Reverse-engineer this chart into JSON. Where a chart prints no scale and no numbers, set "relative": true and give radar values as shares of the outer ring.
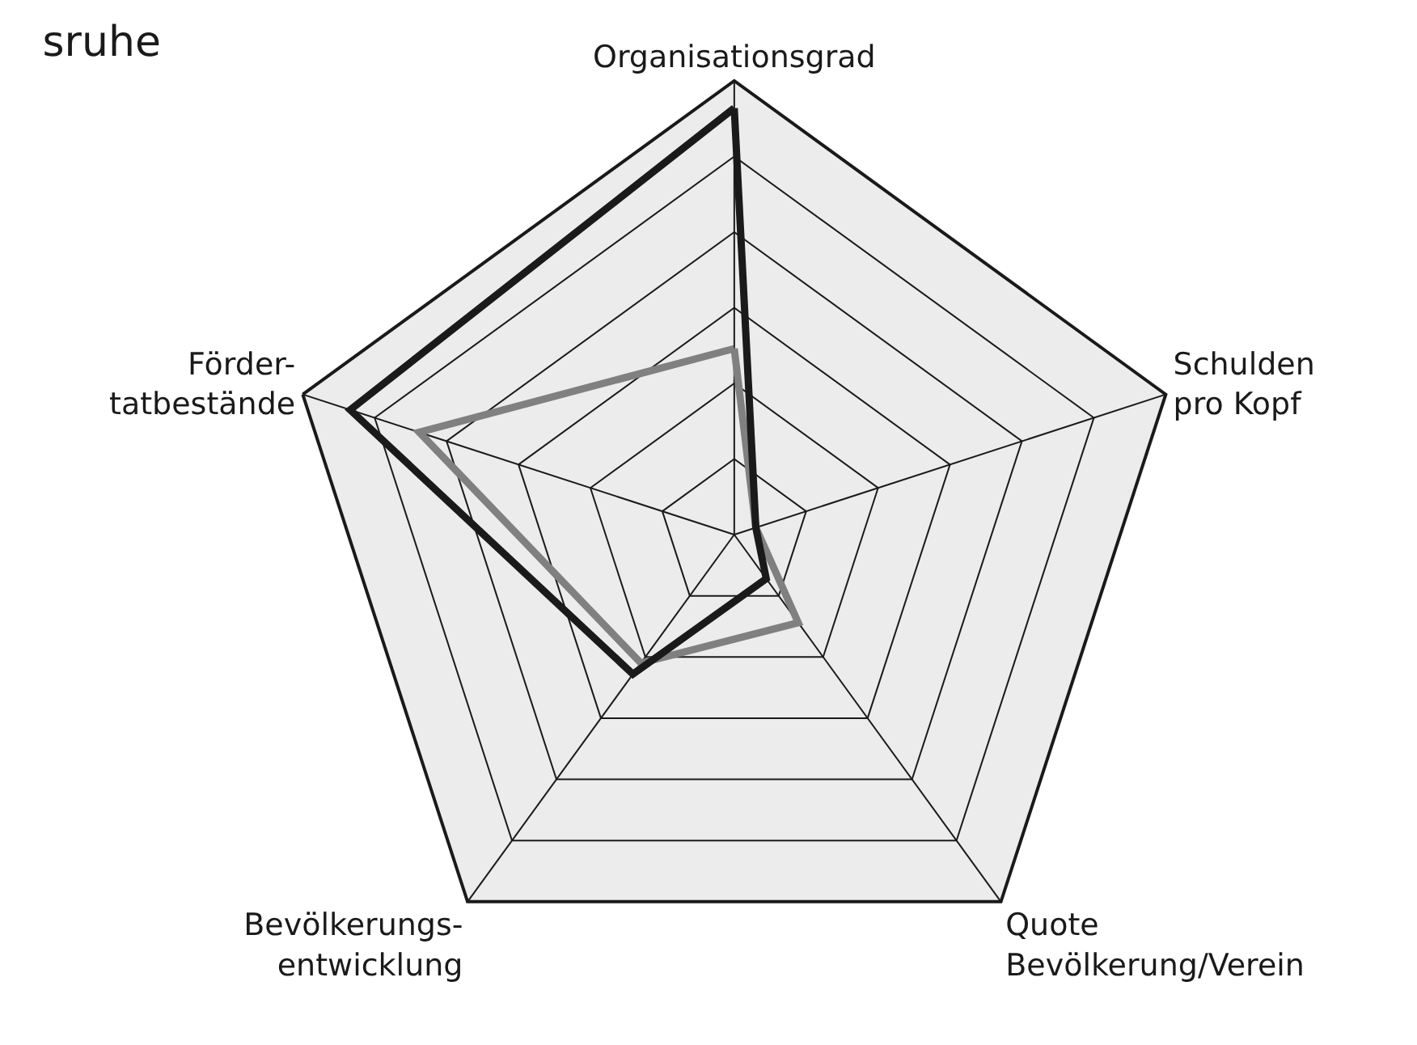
{
  "chart_data": {
    "type": "radar",
    "title": "sruhe",
    "relative": true,
    "grid": true,
    "marker": "none",
    "categories": [
      "Organisationsgrad",
      "Schulden\npro Kopf",
      "Quote\nBevölkerung/Verein",
      "Bevölkerungs-\nentwicklung",
      "Förder-\ntatbestände"
    ],
    "series": [
      {
        "color": "#808080",
        "values": [
          0.41,
          0.05,
          0.24,
          0.35,
          0.73
        ]
      },
      {
        "color": "#1a1a1a",
        "values": [
          0.94,
          0.05,
          0.12,
          0.38,
          0.89
        ]
      }
    ]
  }
}
